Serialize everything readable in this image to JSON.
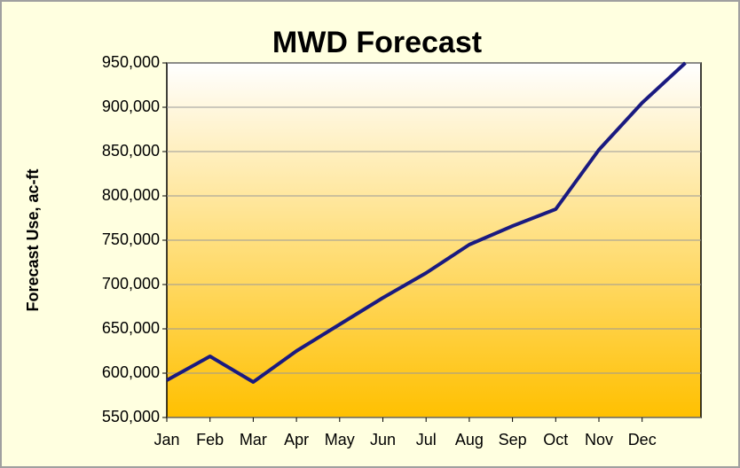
{
  "chart_data": {
    "type": "line",
    "title": "MWD Forecast",
    "y_label": "Forecast Use, ac-ft",
    "categories": [
      "Jan",
      "Feb",
      "Mar",
      "Apr",
      "May",
      "Jun",
      "Jul",
      "Aug",
      "Sep",
      "Oct",
      "Nov",
      "Dec",
      null
    ],
    "series": [
      {
        "name": "Forecast Use",
        "color": "#1a1a80",
        "values": [
          592000,
          619000,
          590000,
          625000,
          655000,
          685000,
          713000,
          745000,
          766000,
          785000,
          852000,
          905000,
          950000
        ]
      }
    ],
    "ylim": [
      550000,
      950000
    ],
    "yticks": [
      {
        "value": 550000,
        "label": "550,000"
      },
      {
        "value": 600000,
        "label": "600,000"
      },
      {
        "value": 650000,
        "label": "650,000"
      },
      {
        "value": 700000,
        "label": "700,000"
      },
      {
        "value": 750000,
        "label": "750,000"
      },
      {
        "value": 800000,
        "label": "800,000"
      },
      {
        "value": 850000,
        "label": "850,000"
      },
      {
        "value": 900000,
        "label": "900,000"
      },
      {
        "value": 950000,
        "label": "950,000"
      }
    ],
    "grid": true
  }
}
